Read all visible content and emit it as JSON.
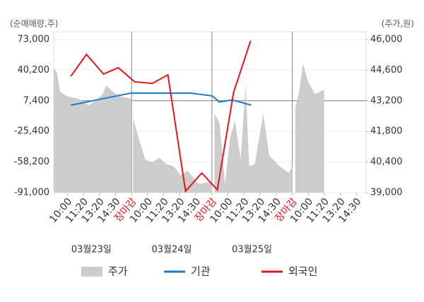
{
  "chart_data": {
    "type": "line",
    "y_label": "(순매매량,주)",
    "y2_label": "(주가,원)",
    "categories": [
      "10:00",
      "11:20",
      "13:20",
      "14:30",
      "장마감",
      "10:00",
      "11:20",
      "13:20",
      "14:30",
      "장마감",
      "10:00",
      "11:20",
      "13:20",
      "14:30",
      "장마감",
      "10:00",
      "11:20",
      "13:20",
      "14:30"
    ],
    "dates": [
      "03월23일",
      "03월24일",
      "03월25일"
    ],
    "xlim": [
      -0.85,
      18.6
    ],
    "ylim": [
      -91000,
      73000
    ],
    "yticks": [
      {
        "value": -91000,
        "label": "-91,000"
      },
      {
        "value": -58200,
        "label": "-58,200"
      },
      {
        "value": -25400,
        "label": "-25,400"
      },
      {
        "value": 7400,
        "label": "7,400"
      },
      {
        "value": 40200,
        "label": "40,200"
      },
      {
        "value": 73000,
        "label": "73,000"
      }
    ],
    "y2lim": [
      39000,
      46000
    ],
    "y2ticks": [
      {
        "value": 39000,
        "label": "39,000"
      },
      {
        "value": 40400,
        "label": "40,400"
      },
      {
        "value": 41800,
        "label": "41,800"
      },
      {
        "value": 43200,
        "label": "43,200"
      },
      {
        "value": 44600,
        "label": "44,600"
      },
      {
        "value": 46000,
        "label": "46,000"
      }
    ],
    "series": [
      {
        "name": "주가",
        "type": "area",
        "axis": "y2",
        "color": "#cccccc",
        "x": [
          -0.84,
          -0.66,
          -0.44,
          0,
          0.66,
          1.32,
          1.76,
          2.2,
          2.42,
          2.86,
          3.3,
          3.96,
          4.0,
          4.1,
          4.4,
          4.85,
          5.29,
          5.73,
          6.17,
          6.61,
          7.05,
          7.49,
          8.15,
          9.03,
          9.1,
          9.16,
          9.47,
          9.82,
          10.13,
          10.44,
          10.79,
          11.1,
          11.32,
          11.67,
          12.2,
          12.56,
          13.22,
          13.79,
          14.01,
          14.1,
          14.19,
          14.41,
          14.67,
          14.98,
          15.42,
          15.99
        ],
        "values": [
          44700,
          44500,
          43600,
          43400,
          43300,
          43000,
          43200,
          43500,
          43900,
          43600,
          43400,
          43300,
          null,
          42400,
          41600,
          40500,
          40400,
          40600,
          40300,
          40200,
          39800,
          40000,
          39400,
          39500,
          null,
          42600,
          42200,
          39400,
          41500,
          42300,
          40500,
          43900,
          40200,
          40300,
          42600,
          40700,
          40200,
          39900,
          40200,
          null,
          42900,
          43500,
          44900,
          44100,
          43500,
          43700
        ]
      },
      {
        "name": "기관",
        "color": "#1f7bc8",
        "x": [
          0.22,
          3.96,
          7.7,
          9.03,
          9.47,
          10.26,
          11.45
        ],
        "values": [
          2700,
          15600,
          15600,
          12600,
          6000,
          8300,
          2700
        ]
      },
      {
        "name": "외국인",
        "color": "#e8141b",
        "x": [
          0.22,
          1.19,
          2.25,
          3.17,
          4.19,
          5.29,
          6.26,
          7.36,
          8.37,
          9.34,
          10.35,
          11.41
        ],
        "values": [
          33700,
          57000,
          36000,
          42800,
          27700,
          26000,
          35200,
          -89500,
          -70000,
          -88000,
          16300,
          71500
        ]
      }
    ]
  }
}
